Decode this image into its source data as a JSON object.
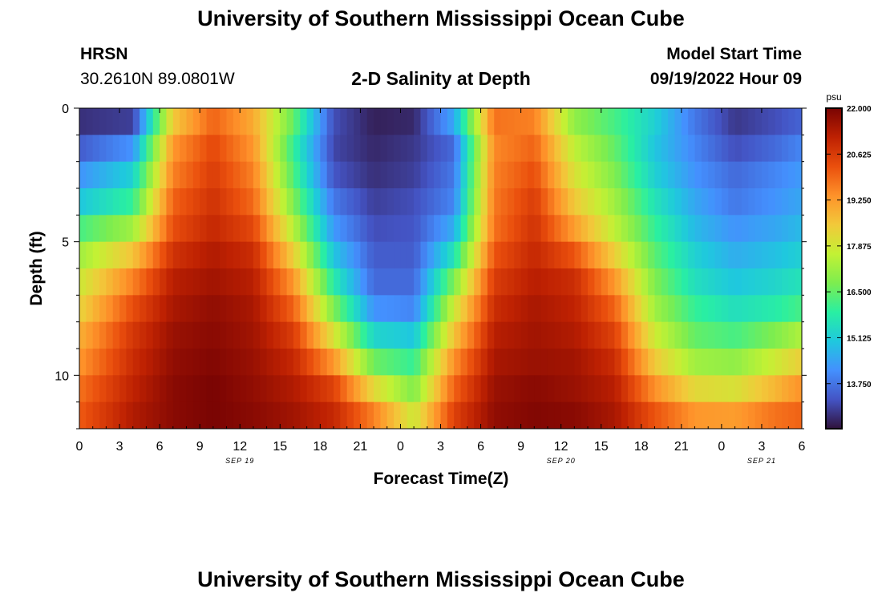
{
  "header": {
    "title": "University of Southern Mississippi Ocean Cube",
    "station": "HRSN",
    "coords": "30.2610N  89.0801W",
    "subtitle": "2-D Salinity at Depth",
    "start_label": "Model Start Time",
    "start_value": "09/19/2022 Hour 09"
  },
  "footer": {
    "title": "University of Southern Mississippi Ocean Cube"
  },
  "colors": {
    "scale": [
      "#30123b",
      "#4454c4",
      "#4490fe",
      "#1fc8de",
      "#29efa2",
      "#7ded4f",
      "#c3f134",
      "#f2c93a",
      "#fe922a",
      "#ea4f0d",
      "#be2102",
      "#7a0403"
    ]
  },
  "chart_data": {
    "type": "heatmap",
    "title": "2-D Salinity at Depth",
    "xlabel": "Forecast Time(Z)",
    "ylabel": "Depth (ft)",
    "x_hours_range": [
      0,
      54
    ],
    "y_depth_range": [
      0,
      12
    ],
    "x_tick_labels": [
      "0",
      "3",
      "6",
      "9",
      "12",
      "15",
      "18",
      "21",
      "0",
      "3",
      "6",
      "9",
      "12",
      "15",
      "18",
      "21",
      "0",
      "3",
      "6"
    ],
    "y_tick_labels": [
      "0",
      "5",
      "10"
    ],
    "y_ticks": [
      0,
      5,
      10
    ],
    "date_labels": [
      {
        "text": "SEP 19",
        "hour": 12
      },
      {
        "text": "SEP 20",
        "hour": 36
      },
      {
        "text": "SEP 21",
        "hour": 51
      }
    ],
    "colorbar": {
      "unit": "psu",
      "min": 12.4,
      "max": 22.0,
      "tick_values": [
        22.0,
        20.625,
        19.25,
        17.875,
        16.5,
        15.125,
        13.75
      ],
      "tick_labels": [
        "22.000",
        "20.625",
        "19.250",
        "17.875",
        "16.500",
        "15.125",
        "13.750"
      ]
    },
    "depth_levels": [
      0.5,
      1.5,
      2.5,
      3.5,
      4.5,
      5.5,
      6.5,
      7.5,
      8.5,
      9.5,
      10.5,
      11.5
    ],
    "salinity_keyframes": {
      "hours": [
        0,
        4,
        7,
        10,
        13,
        16,
        19,
        22,
        25,
        28,
        31,
        34,
        37,
        40,
        43,
        46,
        49,
        52,
        54
      ],
      "profiles": [
        [
          12.8,
          13.0,
          18.5,
          20.0,
          19.0,
          16.5,
          13.2,
          12.6,
          12.7,
          14.5,
          19.8,
          19.6,
          17.0,
          16.2,
          15.2,
          13.8,
          12.9,
          13.2,
          13.5
        ],
        [
          13.4,
          14.2,
          19.3,
          20.4,
          19.3,
          16.0,
          13.1,
          12.7,
          12.9,
          13.6,
          19.5,
          20.0,
          17.6,
          16.5,
          15.0,
          14.0,
          13.2,
          13.6,
          14.0
        ],
        [
          14.2,
          15.2,
          19.6,
          20.6,
          19.6,
          16.3,
          13.3,
          12.8,
          13.0,
          13.8,
          19.6,
          20.3,
          18.0,
          16.8,
          15.2,
          14.2,
          13.6,
          14.0,
          14.3
        ],
        [
          15.0,
          16.0,
          20.0,
          20.8,
          19.9,
          16.8,
          13.8,
          13.0,
          13.2,
          14.0,
          19.7,
          20.6,
          18.5,
          17.2,
          15.6,
          14.5,
          13.8,
          14.2,
          14.5
        ],
        [
          16.2,
          17.2,
          20.3,
          21.0,
          20.4,
          17.5,
          14.3,
          13.2,
          13.3,
          14.6,
          19.8,
          20.8,
          19.2,
          17.6,
          16.0,
          14.8,
          14.2,
          14.5,
          14.8
        ],
        [
          17.2,
          18.6,
          20.8,
          21.3,
          20.9,
          18.4,
          15.0,
          13.4,
          13.4,
          15.6,
          20.2,
          21.0,
          20.2,
          18.4,
          16.4,
          15.2,
          14.6,
          14.9,
          15.2
        ],
        [
          17.8,
          19.6,
          21.2,
          21.5,
          21.2,
          19.3,
          15.8,
          13.6,
          13.6,
          16.8,
          20.6,
          21.2,
          20.9,
          19.3,
          16.8,
          15.5,
          15.0,
          15.3,
          15.6
        ],
        [
          18.3,
          20.3,
          21.4,
          21.7,
          21.4,
          20.0,
          16.8,
          14.2,
          14.0,
          17.8,
          20.9,
          21.4,
          21.1,
          20.0,
          17.2,
          16.0,
          15.5,
          15.8,
          16.2
        ],
        [
          18.9,
          20.7,
          21.6,
          21.8,
          21.5,
          20.6,
          18.0,
          15.3,
          15.0,
          18.6,
          21.2,
          21.5,
          21.3,
          20.5,
          17.8,
          16.5,
          16.2,
          16.8,
          17.4
        ],
        [
          19.3,
          20.9,
          21.7,
          21.9,
          21.6,
          21.0,
          19.3,
          16.6,
          16.0,
          19.4,
          21.4,
          21.6,
          21.5,
          20.9,
          18.5,
          17.2,
          17.0,
          17.8,
          18.4
        ],
        [
          19.8,
          21.1,
          21.8,
          22.0,
          21.7,
          21.3,
          20.5,
          18.2,
          16.8,
          20.0,
          21.6,
          21.8,
          21.6,
          21.2,
          19.4,
          18.2,
          18.0,
          18.8,
          19.4
        ],
        [
          20.1,
          21.3,
          21.8,
          22.0,
          21.8,
          21.5,
          21.0,
          19.6,
          17.8,
          20.5,
          21.7,
          21.9,
          21.8,
          21.4,
          20.2,
          19.3,
          19.2,
          19.8,
          20.0
        ]
      ]
    }
  }
}
